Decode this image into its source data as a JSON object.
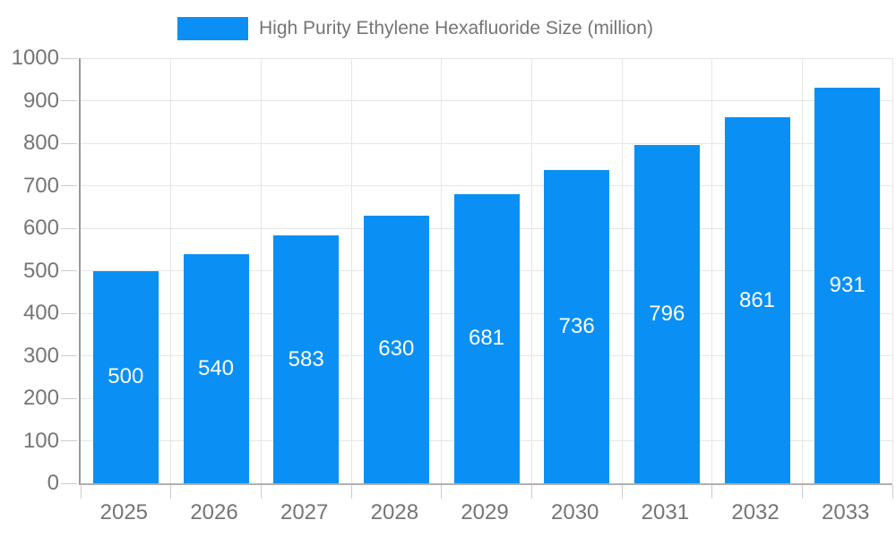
{
  "legend": {
    "label": "High Purity Ethylene Hexafluoride Size (million)",
    "swatch_color": "#0a90f5"
  },
  "chart_data": {
    "type": "bar",
    "title": "High Purity Ethylene Hexafluoride Size (million)",
    "categories": [
      "2025",
      "2026",
      "2027",
      "2028",
      "2029",
      "2030",
      "2031",
      "2032",
      "2033"
    ],
    "series": [
      {
        "name": "High Purity Ethylene Hexafluoride Size (million)",
        "values": [
          500,
          540,
          583,
          630,
          681,
          736,
          796,
          861,
          931
        ]
      }
    ],
    "value_labels": [
      "500",
      "540",
      "583",
      "630",
      "681",
      "736",
      "796",
      "861",
      "931"
    ],
    "xlabel": "",
    "ylabel": "",
    "ylim": [
      0,
      1000
    ],
    "ytick_step": 100,
    "ytick_labels": [
      "0",
      "100",
      "200",
      "300",
      "400",
      "500",
      "600",
      "700",
      "800",
      "900",
      "1000"
    ],
    "grid": true,
    "legend_position": "top",
    "bar_color": "#0a90f5",
    "value_label_color": "#ffffff",
    "axis_text_color": "#757575",
    "gridline_color": "#e6e6e6"
  }
}
